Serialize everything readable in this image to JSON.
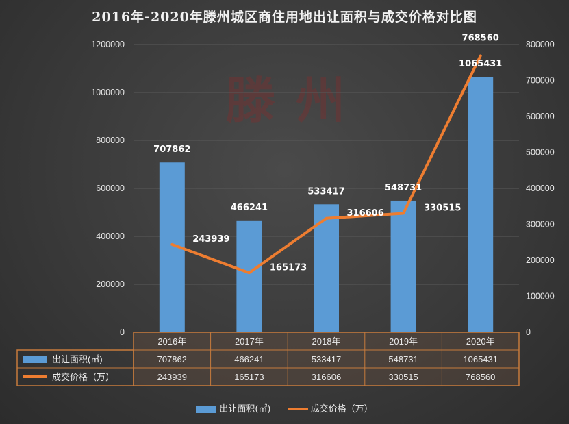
{
  "title": "2016年-2020年滕州城区商住用地出让面积与成交价格对比图",
  "watermark": "滕州",
  "chart_data": {
    "type": "bar+line",
    "categories": [
      "2016年",
      "2017年",
      "2018年",
      "2019年",
      "2020年"
    ],
    "series": [
      {
        "name": "出让面积(㎡)",
        "type": "bar",
        "axis": "left",
        "values": [
          707862,
          466241,
          533417,
          548731,
          1065431
        ]
      },
      {
        "name": "成交价格（万）",
        "type": "line",
        "axis": "right",
        "values": [
          243939,
          165173,
          316606,
          330515,
          768560
        ]
      }
    ],
    "y_left": {
      "ylim": [
        0,
        1200000
      ],
      "ticks": [
        0,
        200000,
        400000,
        600000,
        800000,
        1000000,
        1200000
      ]
    },
    "y_right": {
      "ylim": [
        0,
        800000
      ],
      "ticks": [
        0,
        100000,
        200000,
        300000,
        400000,
        500000,
        600000,
        700000,
        800000
      ]
    },
    "grid": true,
    "data_table": true,
    "legend_position": "bottom"
  },
  "colors": {
    "bar": "#5b9bd5",
    "line": "#ed7d31",
    "table_border": "#c77b3c"
  }
}
